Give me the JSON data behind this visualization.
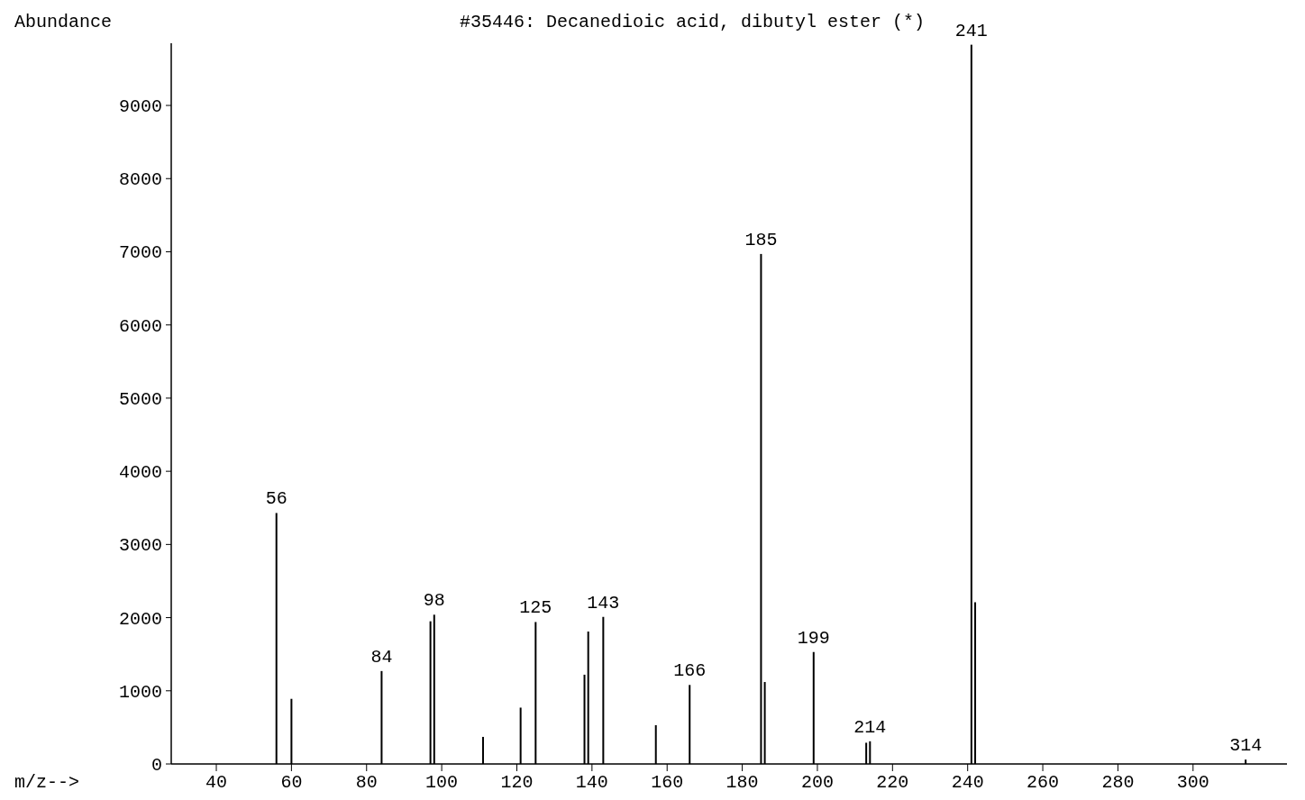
{
  "chart_data": {
    "type": "bar",
    "title": "#35446: Decanedioic acid, dibutyl ester (*)",
    "xlabel": "m/z-->",
    "ylabel": "Abundance",
    "x": [
      56,
      60,
      84,
      97,
      98,
      111,
      121,
      125,
      138,
      139,
      143,
      157,
      166,
      185,
      186,
      199,
      213,
      214,
      241,
      242,
      314
    ],
    "values": [
      3430,
      890,
      1270,
      1950,
      2040,
      370,
      770,
      1940,
      1220,
      1810,
      2010,
      530,
      1080,
      6970,
      1120,
      1530,
      290,
      310,
      9830,
      2210,
      60
    ],
    "color": "#000000",
    "xlim": [
      28,
      325
    ],
    "xticks": [
      40,
      60,
      80,
      100,
      120,
      140,
      160,
      180,
      200,
      220,
      240,
      260,
      280,
      300
    ],
    "ylim": [
      0,
      9850
    ],
    "yticks": [
      0,
      1000,
      2000,
      3000,
      4000,
      5000,
      6000,
      7000,
      8000,
      9000
    ],
    "grid": false,
    "annotations": [
      {
        "text": "56",
        "x": 56,
        "y": 3430
      },
      {
        "text": "84",
        "x": 84,
        "y": 1270
      },
      {
        "text": "98",
        "x": 98,
        "y": 2040
      },
      {
        "text": "125",
        "x": 125,
        "y": 1940
      },
      {
        "text": "143",
        "x": 143,
        "y": 2010
      },
      {
        "text": "166",
        "x": 166,
        "y": 1080
      },
      {
        "text": "185",
        "x": 185,
        "y": 6970
      },
      {
        "text": "199",
        "x": 199,
        "y": 1530
      },
      {
        "text": "214",
        "x": 214,
        "y": 310
      },
      {
        "text": "241",
        "x": 241,
        "y": 9830
      },
      {
        "text": "314",
        "x": 314,
        "y": 60
      }
    ]
  }
}
